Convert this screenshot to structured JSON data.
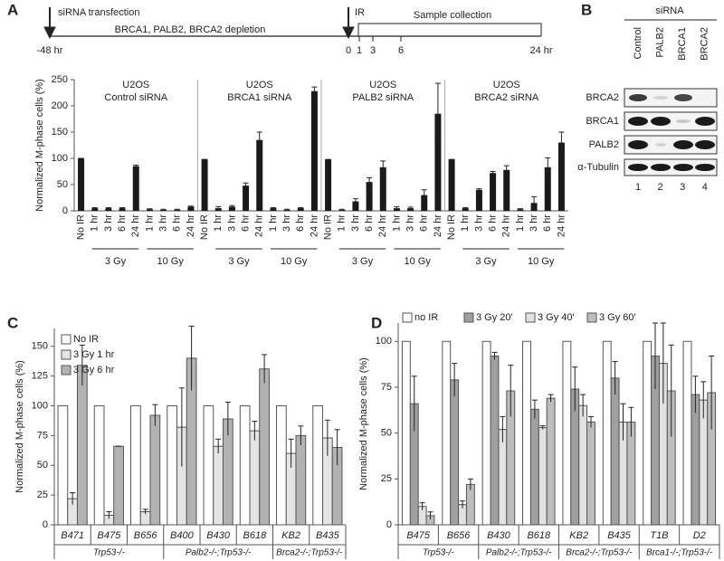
{
  "panels": [
    "A",
    "B",
    "C",
    "D"
  ],
  "timeline": {
    "start_label": "siRNA transfection",
    "depletion": "BRCA1, PALB2, BRCA2 depletion",
    "ir": "IR",
    "collection": "Sample collection",
    "ticks": [
      "-48 hr",
      "0",
      "1",
      "3",
      "6",
      "24 hr"
    ]
  },
  "blot": {
    "title": "siRNA",
    "lanes": [
      "Control",
      "PALB2",
      "BRCA1",
      "BRCA2"
    ],
    "proteins": [
      "BRCA2",
      "BRCA1",
      "PALB2",
      "α-Tubulin"
    ],
    "lane_numbers": [
      "1",
      "2",
      "3",
      "4"
    ]
  },
  "chart_data": [
    {
      "type": "bar",
      "ylabel": "Normalized M-phase cells (%)",
      "ylim": [
        0,
        250
      ],
      "yticks": [
        0,
        50,
        100,
        150,
        200,
        250
      ],
      "color": "#1a1a1a",
      "groups": [
        {
          "label": null,
          "categories": [
            "No IR"
          ]
        },
        {
          "label": "3 Gy",
          "categories": [
            "1 hr",
            "3 hr",
            "6 hr",
            "24 hr"
          ]
        },
        {
          "label": "10 Gy",
          "categories": [
            "1 hr",
            "3 hr",
            "6 hr",
            "24 hr"
          ]
        }
      ],
      "panels": [
        {
          "title": [
            "U2OS",
            "Control siRNA"
          ],
          "values": [
            100,
            5,
            5,
            5,
            85,
            3,
            2,
            2,
            8
          ],
          "errors": [
            0,
            1,
            1,
            1,
            2,
            1,
            1,
            1,
            1
          ]
        },
        {
          "title": [
            "U2OS",
            "BRCA1 siRNA"
          ],
          "values": [
            98,
            5,
            8,
            48,
            135,
            5,
            2,
            5,
            228
          ],
          "errors": [
            0,
            3,
            2,
            5,
            15,
            1,
            1,
            1,
            8
          ]
        },
        {
          "title": [
            "U2OS",
            "PALB2 siRNA"
          ],
          "values": [
            98,
            2,
            18,
            55,
            83,
            5,
            5,
            30,
            185
          ],
          "errors": [
            0,
            1,
            5,
            8,
            12,
            3,
            2,
            10,
            58
          ]
        },
        {
          "title": [
            "U2OS",
            "BRCA2 siRNA"
          ],
          "values": [
            98,
            5,
            40,
            72,
            78,
            3,
            15,
            83,
            130
          ],
          "errors": [
            0,
            1,
            2,
            3,
            8,
            1,
            12,
            18,
            20
          ]
        }
      ]
    },
    {
      "type": "grouped_bar",
      "ylabel": "Normalized M-phase cells (%)",
      "ylim": [
        0,
        165
      ],
      "yticks": [
        0,
        25,
        50,
        75,
        100,
        125,
        150
      ],
      "legend": "upper left",
      "groups": [
        {
          "label": "Trp53-/-",
          "categories": [
            "B471",
            "B475",
            "B656"
          ]
        },
        {
          "label": "Palb2-/-;Trp53-/-",
          "categories": [
            "B400",
            "B430",
            "B618"
          ]
        },
        {
          "label": "Brca2-/-;Trp53-/-",
          "categories": [
            "KB2",
            "B435"
          ]
        }
      ],
      "series": [
        {
          "name": "No IR",
          "color": "#ffffff",
          "values": [
            100,
            100,
            100,
            100,
            100,
            100,
            100,
            100
          ]
        },
        {
          "name": "3 Gy 1 hr",
          "color": "#e4e4e4",
          "values": [
            22,
            8,
            11,
            82,
            66,
            79,
            60,
            73
          ],
          "errors": [
            5,
            3,
            2,
            33,
            6,
            8,
            12,
            15
          ]
        },
        {
          "name": "3 Gy 6 hr",
          "color": "#b3b3b3",
          "values": [
            134,
            66,
            92,
            140,
            89,
            131,
            75,
            65
          ],
          "errors": [
            17,
            0,
            9,
            27,
            14,
            12,
            8,
            15
          ]
        }
      ]
    },
    {
      "type": "grouped_bar",
      "ylabel": "Normalized M-phase cells (%)",
      "ylim": [
        0,
        110
      ],
      "yticks": [
        0,
        25,
        50,
        75,
        100
      ],
      "legend": "top",
      "groups": [
        {
          "label": "Trp53-/-",
          "categories": [
            "B475",
            "B656"
          ]
        },
        {
          "label": "Palb2-/-;Trp53-/-",
          "categories": [
            "B430",
            "B618"
          ]
        },
        {
          "label": "Brca2-/-;Trp53-/-",
          "categories": [
            "KB2",
            "B435"
          ]
        },
        {
          "label": "Brca1-/-;Trp53-/-",
          "categories": [
            "T1B",
            "D2"
          ]
        }
      ],
      "series": [
        {
          "name": "no IR",
          "color": "#ffffff",
          "values": [
            100,
            100,
            100,
            100,
            100,
            100,
            100,
            100
          ]
        },
        {
          "name": "3 Gy 20'",
          "color": "#a0a0a0",
          "values": [
            66,
            79,
            92,
            63,
            74,
            80,
            92,
            71
          ],
          "errors": [
            15,
            9,
            2,
            5,
            12,
            9,
            18,
            10
          ]
        },
        {
          "name": "3 Gy 40'",
          "color": "#e2e2e2",
          "values": [
            10,
            11,
            52,
            53,
            65,
            56,
            88,
            68
          ],
          "errors": [
            2,
            2,
            7,
            1,
            6,
            10,
            22,
            10
          ]
        },
        {
          "name": "3 Gy 60'",
          "color": "#bdbdbd",
          "values": [
            5,
            22,
            73,
            69,
            56,
            56,
            73,
            72
          ],
          "errors": [
            2,
            3,
            14,
            2,
            3,
            8,
            25,
            20
          ]
        }
      ]
    }
  ]
}
